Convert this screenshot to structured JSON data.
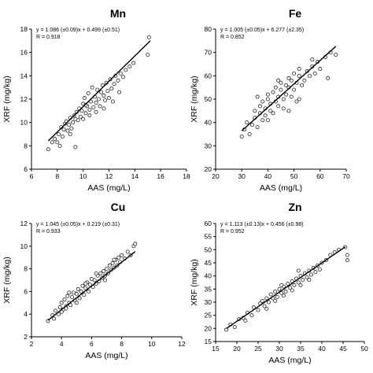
{
  "chart_data": [
    {
      "type": "scatter",
      "title": "Mn",
      "equation": "y = 1.086 (±0.09)x + 0.499 (±0.51)",
      "r_text": "R = 0.918",
      "xlabel": "AAS (mg/L)",
      "ylabel": "XRF (mg/kg)",
      "xlim": [
        6,
        18
      ],
      "ylim": [
        6,
        18
      ],
      "xticks": [
        6,
        8,
        10,
        12,
        14,
        16,
        18
      ],
      "yticks": [
        6,
        8,
        10,
        12,
        14,
        16,
        18
      ],
      "fit": {
        "slope": 1.086,
        "intercept": 0.499,
        "x_range": [
          7.3,
          15.2
        ]
      },
      "points": [
        [
          7.3,
          7.7
        ],
        [
          7.6,
          8.3
        ],
        [
          7.8,
          8.6
        ],
        [
          8.0,
          8.3
        ],
        [
          8.1,
          9.0
        ],
        [
          8.3,
          9.6
        ],
        [
          8.4,
          8.8
        ],
        [
          8.5,
          9.4
        ],
        [
          8.6,
          9.9
        ],
        [
          8.7,
          10.1
        ],
        [
          8.8,
          9.3
        ],
        [
          8.9,
          9.8
        ],
        [
          9.0,
          10.4
        ],
        [
          9.1,
          9.5
        ],
        [
          9.2,
          10.0
        ],
        [
          9.3,
          10.6
        ],
        [
          9.4,
          7.9
        ],
        [
          9.5,
          10.9
        ],
        [
          9.6,
          10.2
        ],
        [
          9.7,
          11.2
        ],
        [
          9.8,
          10.5
        ],
        [
          9.9,
          11.0
        ],
        [
          10.0,
          10.3
        ],
        [
          10.0,
          11.6
        ],
        [
          10.1,
          12.1
        ],
        [
          10.2,
          10.8
        ],
        [
          10.3,
          11.4
        ],
        [
          10.4,
          12.5
        ],
        [
          10.5,
          11.1
        ],
        [
          10.6,
          11.8
        ],
        [
          10.7,
          13.0
        ],
        [
          10.8,
          11.3
        ],
        [
          10.9,
          12.2
        ],
        [
          11.0,
          11.7
        ],
        [
          11.1,
          12.8
        ],
        [
          11.2,
          12.0
        ],
        [
          11.3,
          11.4
        ],
        [
          11.4,
          12.6
        ],
        [
          11.5,
          13.2
        ],
        [
          11.6,
          12.3
        ],
        [
          11.7,
          11.9
        ],
        [
          11.8,
          13.4
        ],
        [
          11.9,
          12.7
        ],
        [
          12.0,
          12.1
        ],
        [
          12.1,
          13.7
        ],
        [
          12.2,
          12.9
        ],
        [
          12.4,
          13.3
        ],
        [
          12.5,
          14.0
        ],
        [
          12.7,
          13.6
        ],
        [
          12.9,
          14.2
        ],
        [
          13.1,
          13.9
        ],
        [
          13.3,
          14.5
        ],
        [
          13.6,
          14.8
        ],
        [
          13.9,
          15.1
        ],
        [
          15.0,
          15.8
        ],
        [
          15.1,
          17.3
        ],
        [
          8.2,
          8.0
        ],
        [
          9.0,
          9.0
        ],
        [
          10.5,
          10.6
        ],
        [
          11.0,
          10.9
        ],
        [
          11.6,
          11.2
        ],
        [
          12.3,
          11.8
        ],
        [
          10.2,
          11.5
        ],
        [
          9.4,
          10.3
        ],
        [
          12.8,
          12.6
        ]
      ]
    },
    {
      "type": "scatter",
      "title": "Fe",
      "equation": "y = 1.005 (±0.05)x + 6.277 (±2.35)",
      "r_text": "R = 0.852",
      "xlabel": "AAS (mg/L)",
      "ylabel": "XRF (mg/kg)",
      "xlim": [
        20,
        70
      ],
      "ylim": [
        20,
        80
      ],
      "xticks": [
        20,
        30,
        40,
        50,
        60,
        70
      ],
      "yticks": [
        20,
        30,
        40,
        50,
        60,
        70,
        80
      ],
      "fit": {
        "slope": 1.005,
        "intercept": 6.277,
        "x_range": [
          30,
          66
        ]
      },
      "points": [
        [
          30,
          34
        ],
        [
          31,
          37
        ],
        [
          32,
          40
        ],
        [
          33,
          35
        ],
        [
          34,
          39
        ],
        [
          35,
          42
        ],
        [
          35,
          45
        ],
        [
          36,
          38
        ],
        [
          37,
          44
        ],
        [
          37,
          47
        ],
        [
          38,
          41
        ],
        [
          38,
          49
        ],
        [
          39,
          43
        ],
        [
          39,
          46
        ],
        [
          40,
          50
        ],
        [
          40,
          52
        ],
        [
          41,
          45
        ],
        [
          41,
          48
        ],
        [
          42,
          53
        ],
        [
          42,
          44
        ],
        [
          43,
          49
        ],
        [
          43,
          55
        ],
        [
          44,
          47
        ],
        [
          44,
          51
        ],
        [
          45,
          54
        ],
        [
          45,
          57
        ],
        [
          46,
          50
        ],
        [
          46,
          46
        ],
        [
          47,
          56
        ],
        [
          47,
          52
        ],
        [
          48,
          59
        ],
        [
          48,
          55
        ],
        [
          49,
          51
        ],
        [
          49,
          58
        ],
        [
          50,
          61
        ],
        [
          50,
          54
        ],
        [
          51,
          57
        ],
        [
          51,
          49
        ],
        [
          52,
          60
        ],
        [
          52,
          63
        ],
        [
          53,
          56
        ],
        [
          54,
          58
        ],
        [
          55,
          62
        ],
        [
          56,
          60
        ],
        [
          57,
          64
        ],
        [
          58,
          61
        ],
        [
          59,
          66
        ],
        [
          60,
          63
        ],
        [
          62,
          68
        ],
        [
          64,
          70
        ],
        [
          66,
          69
        ],
        [
          63,
          59
        ],
        [
          36,
          51
        ],
        [
          40,
          41
        ],
        [
          44,
          58
        ],
        [
          48,
          45
        ],
        [
          52,
          50
        ],
        [
          57,
          67
        ]
      ]
    },
    {
      "type": "scatter",
      "title": "Cu",
      "equation": "y = 1.045 (±0.05)x + 0.219 (±0.31)",
      "r_text": "R = 0.933",
      "xlabel": "AAS (mg/L)",
      "ylabel": "XRF (mg/kg)",
      "xlim": [
        2,
        12
      ],
      "ylim": [
        2,
        12
      ],
      "xticks": [
        2,
        4,
        6,
        8,
        10,
        12
      ],
      "yticks": [
        2,
        4,
        6,
        8,
        10,
        12
      ],
      "fit": {
        "slope": 1.045,
        "intercept": 0.219,
        "x_range": [
          3.1,
          8.9
        ]
      },
      "points": [
        [
          3.1,
          3.4
        ],
        [
          3.4,
          3.9
        ],
        [
          3.6,
          4.3
        ],
        [
          3.8,
          4.0
        ],
        [
          3.9,
          4.6
        ],
        [
          4.0,
          5.0
        ],
        [
          4.1,
          4.4
        ],
        [
          4.2,
          5.3
        ],
        [
          4.3,
          4.7
        ],
        [
          4.4,
          5.6
        ],
        [
          4.5,
          5.0
        ],
        [
          4.6,
          4.8
        ],
        [
          4.7,
          5.5
        ],
        [
          4.8,
          5.9
        ],
        [
          4.9,
          5.2
        ],
        [
          5.0,
          5.8
        ],
        [
          5.1,
          6.2
        ],
        [
          5.2,
          5.4
        ],
        [
          5.3,
          6.0
        ],
        [
          5.4,
          6.5
        ],
        [
          5.5,
          5.7
        ],
        [
          5.6,
          6.3
        ],
        [
          5.7,
          6.8
        ],
        [
          5.8,
          6.0
        ],
        [
          5.9,
          6.6
        ],
        [
          6.0,
          7.1
        ],
        [
          6.1,
          6.4
        ],
        [
          6.2,
          7.0
        ],
        [
          6.3,
          6.7
        ],
        [
          6.4,
          7.4
        ],
        [
          6.5,
          6.9
        ],
        [
          6.6,
          7.6
        ],
        [
          6.7,
          7.2
        ],
        [
          6.8,
          7.8
        ],
        [
          6.9,
          7.4
        ],
        [
          7.0,
          8.0
        ],
        [
          7.1,
          7.6
        ],
        [
          7.2,
          8.3
        ],
        [
          7.3,
          7.9
        ],
        [
          7.4,
          8.5
        ],
        [
          7.5,
          8.1
        ],
        [
          7.6,
          8.8
        ],
        [
          7.7,
          8.3
        ],
        [
          7.8,
          9.0
        ],
        [
          7.9,
          8.6
        ],
        [
          8.0,
          9.2
        ],
        [
          8.2,
          8.9
        ],
        [
          8.4,
          9.5
        ],
        [
          8.6,
          9.2
        ],
        [
          8.8,
          10.0
        ],
        [
          8.9,
          10.2
        ],
        [
          4.0,
          4.2
        ],
        [
          4.5,
          5.9
        ],
        [
          5.0,
          5.0
        ],
        [
          5.6,
          6.7
        ],
        [
          6.3,
          7.6
        ],
        [
          6.9,
          7.0
        ],
        [
          7.5,
          8.8
        ],
        [
          3.5,
          3.6
        ],
        [
          4.3,
          4.5
        ]
      ]
    },
    {
      "type": "scatter",
      "title": "Zn",
      "equation": "y = 1.113 (±0.13)x + 0.456 (±0.98)",
      "r_text": "R = 0.952",
      "xlabel": "AAS (mg/L)",
      "ylabel": "XRF (mg/kg)",
      "xlim": [
        15,
        50
      ],
      "ylim": [
        15,
        60
      ],
      "xticks": [
        15,
        20,
        25,
        30,
        35,
        40,
        45,
        50
      ],
      "yticks": [
        15,
        20,
        25,
        30,
        35,
        40,
        45,
        50,
        55,
        60
      ],
      "fit": {
        "slope": 1.113,
        "intercept": 0.456,
        "x_range": [
          17.5,
          45.5
        ]
      },
      "points": [
        [
          17.5,
          19.5
        ],
        [
          18.5,
          21.5
        ],
        [
          19.5,
          20.5
        ],
        [
          20.5,
          23.5
        ],
        [
          21.5,
          24.0
        ],
        [
          22.5,
          26.0
        ],
        [
          23.5,
          25.0
        ],
        [
          24.0,
          28.0
        ],
        [
          25.0,
          27.0
        ],
        [
          25.5,
          29.5
        ],
        [
          26.0,
          30.5
        ],
        [
          26.5,
          28.5
        ],
        [
          27.0,
          31.5
        ],
        [
          27.5,
          30.0
        ],
        [
          28.0,
          33.0
        ],
        [
          28.5,
          31.5
        ],
        [
          29.0,
          34.0
        ],
        [
          29.5,
          32.0
        ],
        [
          30.0,
          35.0
        ],
        [
          30.5,
          33.5
        ],
        [
          31.0,
          36.0
        ],
        [
          31.5,
          34.0
        ],
        [
          32.0,
          37.0
        ],
        [
          32.5,
          35.5
        ],
        [
          33.0,
          38.0
        ],
        [
          33.5,
          36.5
        ],
        [
          34.0,
          39.0
        ],
        [
          34.5,
          37.5
        ],
        [
          35.0,
          40.0
        ],
        [
          35.5,
          38.5
        ],
        [
          36.0,
          41.0
        ],
        [
          36.5,
          39.5
        ],
        [
          37.0,
          42.0
        ],
        [
          37.5,
          40.5
        ],
        [
          38.0,
          43.0
        ],
        [
          38.5,
          41.5
        ],
        [
          39.0,
          44.0
        ],
        [
          40.0,
          45.0
        ],
        [
          41.0,
          46.0
        ],
        [
          42.0,
          48.0
        ],
        [
          43.0,
          49.0
        ],
        [
          44.0,
          50.0
        ],
        [
          45.5,
          51.0
        ],
        [
          46.0,
          48.0
        ],
        [
          46.0,
          46.0
        ],
        [
          29.0,
          30.5
        ],
        [
          31.0,
          32.5
        ],
        [
          33.0,
          34.5
        ],
        [
          35.0,
          36.5
        ],
        [
          37.0,
          38.5
        ],
        [
          22.0,
          23.0
        ],
        [
          27.0,
          27.5
        ],
        [
          30.5,
          36.5
        ],
        [
          34.5,
          42.0
        ],
        [
          39.5,
          42.5
        ]
      ]
    }
  ]
}
